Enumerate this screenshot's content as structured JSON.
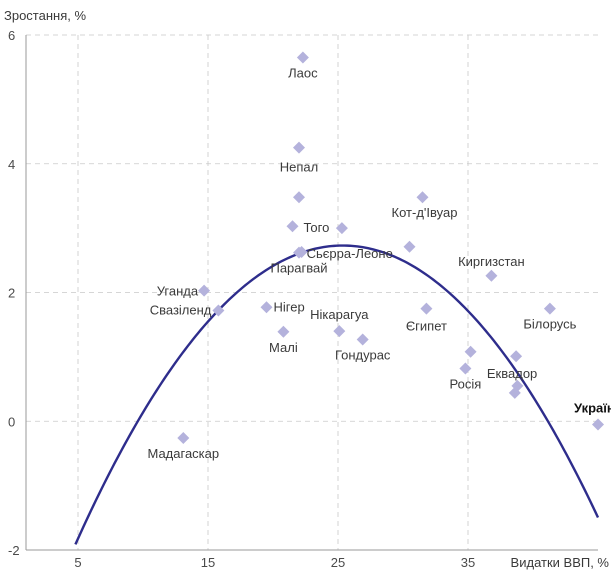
{
  "chart_data": {
    "type": "scatter",
    "title": "",
    "ylabel": "Зростання, %",
    "xlabel": "Видатки ВВП, %",
    "xlim": [
      1,
      45
    ],
    "ylim": [
      -2,
      6
    ],
    "x_ticks": [
      5,
      15,
      25,
      35
    ],
    "y_ticks": [
      -2,
      0,
      2,
      4,
      6
    ],
    "x_tick_labels": [
      "5",
      "15",
      "25",
      "35"
    ],
    "y_tick_labels": [
      "-2",
      "0",
      "2",
      "4",
      "6"
    ],
    "grid": true,
    "marker_color": "#b4b2dc",
    "curve_color": "#2e2d8c",
    "points": [
      {
        "x": 22.3,
        "y": 5.65,
        "label": "Лаос"
      },
      {
        "x": 22.0,
        "y": 4.25,
        "label": "Непал"
      },
      {
        "x": 22.0,
        "y": 3.48,
        "label": ""
      },
      {
        "x": 31.5,
        "y": 3.48,
        "label": "Кот-д'Івуар"
      },
      {
        "x": 21.5,
        "y": 3.03,
        "label": "Того"
      },
      {
        "x": 25.3,
        "y": 3.0,
        "label": ""
      },
      {
        "x": 30.5,
        "y": 2.71,
        "label": ""
      },
      {
        "x": 22.2,
        "y": 2.63,
        "label": "Сьєрра-Леоне"
      },
      {
        "x": 22.0,
        "y": 2.62,
        "label": "Парагвай"
      },
      {
        "x": 36.8,
        "y": 2.26,
        "label": "Киргизстан"
      },
      {
        "x": 14.7,
        "y": 2.03,
        "label": "Уганда"
      },
      {
        "x": 15.8,
        "y": 1.72,
        "label": "Свазіленд"
      },
      {
        "x": 19.5,
        "y": 1.77,
        "label": "Нігер"
      },
      {
        "x": 31.8,
        "y": 1.75,
        "label": "Єгипет"
      },
      {
        "x": 41.3,
        "y": 1.75,
        "label": "Білорусь"
      },
      {
        "x": 20.8,
        "y": 1.39,
        "label": "Малі"
      },
      {
        "x": 25.1,
        "y": 1.4,
        "label": "Нікарагуа"
      },
      {
        "x": 26.9,
        "y": 1.27,
        "label": "Гондурас"
      },
      {
        "x": 35.2,
        "y": 1.08,
        "label": ""
      },
      {
        "x": 38.7,
        "y": 1.01,
        "label": "Еквадор"
      },
      {
        "x": 34.8,
        "y": 0.82,
        "label": "Росія"
      },
      {
        "x": 38.8,
        "y": 0.55,
        "label": ""
      },
      {
        "x": 38.6,
        "y": 0.44,
        "label": ""
      },
      {
        "x": 45.0,
        "y": -0.05,
        "label": "Україна",
        "highlight": true
      },
      {
        "x": 13.1,
        "y": -0.26,
        "label": "Мадагаскар"
      }
    ],
    "fit_curve": {
      "type": "quadratic",
      "description_points": [
        {
          "x": 4.8,
          "y": -2.0
        },
        {
          "x": 10,
          "y": 0.21
        },
        {
          "x": 15,
          "y": 1.6
        },
        {
          "x": 20,
          "y": 2.44
        },
        {
          "x": 25,
          "y": 2.73
        },
        {
          "x": 30,
          "y": 2.47
        },
        {
          "x": 35,
          "y": 1.66
        },
        {
          "x": 40,
          "y": 0.3
        },
        {
          "x": 45,
          "y": -1.4
        }
      ]
    }
  }
}
